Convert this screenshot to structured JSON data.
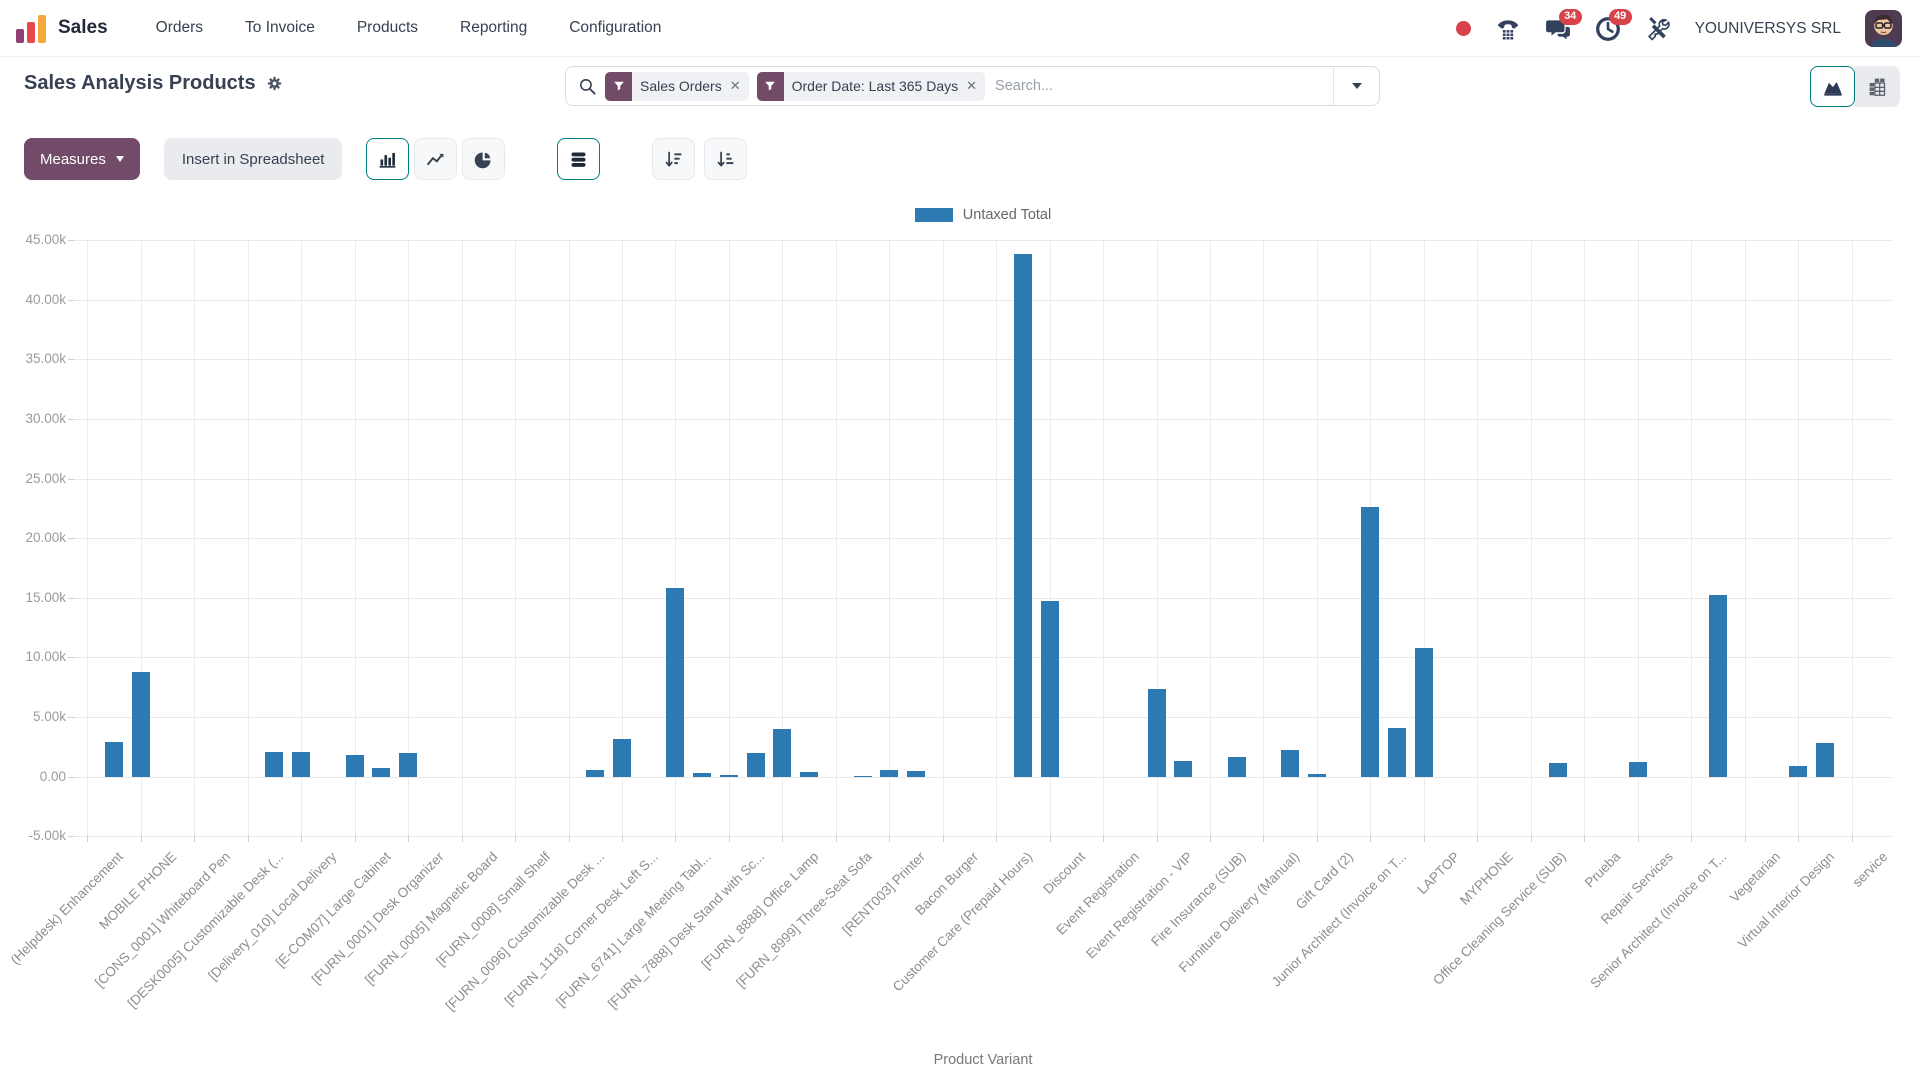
{
  "colors": {
    "primary_purple": "#714B67",
    "accent_teal": "#017e84",
    "bar_blue": "#2d7ab3",
    "badge_red": "#d9414b",
    "icon_navy": "#33415f"
  },
  "navbar": {
    "app_name": "Sales",
    "menu_items": [
      "Orders",
      "To Invoice",
      "Products",
      "Reporting",
      "Configuration"
    ],
    "systray": {
      "messages_badge": "34",
      "activities_badge": "49",
      "company": "YOUNIVERSYS SRL"
    }
  },
  "control_panel": {
    "title": "Sales Analysis Products",
    "search": {
      "facets": [
        "Sales Orders",
        "Order Date: Last 365 Days"
      ],
      "placeholder": "Search..."
    }
  },
  "toolbar": {
    "measures": "Measures",
    "insert_spreadsheet": "Insert in Spreadsheet"
  },
  "chart_data": {
    "type": "bar",
    "title": "",
    "legend": [
      {
        "name": "Untaxed Total",
        "color": "#2d7ab3"
      }
    ],
    "xlabel": "Product Variant",
    "ylim": [
      -5000,
      45000
    ],
    "y_step": 5000,
    "y_ticks": [
      "45.00k",
      "40.00k",
      "35.00k",
      "30.00k",
      "25.00k",
      "20.00k",
      "15.00k",
      "10.00k",
      "5.00k",
      "0.00",
      "-5.00k"
    ],
    "grid": true,
    "legend_position": "top",
    "categories": [
      "(Helpdesk) Enhancement",
      "MOBILE PHONE",
      "[CONS_0001] Whiteboard Pen",
      "[DESK0005] Customizable Desk (...",
      "[Delivery_010] Local Delivery",
      "[E-COM07] Large Cabinet",
      "[FURN_0001] Desk Organizer",
      "[FURN_0005] Magnetic Board",
      "[FURN_0008] Small Shelf",
      "[FURN_0096] Customizable Desk ...",
      "[FURN_1118] Corner Desk Left S...",
      "[FURN_6741] Large Meeting Tabl...",
      "[FURN_7888] Desk Stand with Sc...",
      "[FURN_8888] Office Lamp",
      "[FURN_8999] Three-Seat Sofa",
      "[RENT003] Printer",
      "Bacon Burger",
      "Customer Care (Prepaid Hours)",
      "Discount",
      "Event Registration",
      "Event Registration - VIP",
      "Fire Insurance (SUB)",
      "Furniture Delivery (Manual)",
      "Gift Card (2)",
      "Junior Architect (Invoice on T...",
      "LAPTOP",
      "MYPHONE",
      "Office Cleaning Service (SUB)",
      "Prueba",
      "Repair Services",
      "Senior Architect (Invoice on T...",
      "Vegetarian",
      "Virtual Interior Design",
      "service"
    ],
    "label_slot_stride": 2,
    "total_slots": 68,
    "bars": [
      {
        "slot": 1,
        "value": 2900
      },
      {
        "slot": 2,
        "value": 8800
      },
      {
        "slot": 7,
        "value": 2100
      },
      {
        "slot": 8,
        "value": 2100
      },
      {
        "slot": 10,
        "value": 1850
      },
      {
        "slot": 11,
        "value": 760
      },
      {
        "slot": 12,
        "value": 2000
      },
      {
        "slot": 19,
        "value": 560
      },
      {
        "slot": 20,
        "value": 3200
      },
      {
        "slot": 22,
        "value": 15800
      },
      {
        "slot": 23,
        "value": 310
      },
      {
        "slot": 24,
        "value": 120
      },
      {
        "slot": 25,
        "value": 1960
      },
      {
        "slot": 26,
        "value": 3970
      },
      {
        "slot": 27,
        "value": 370
      },
      {
        "slot": 29,
        "value": 60
      },
      {
        "slot": 30,
        "value": 560
      },
      {
        "slot": 31,
        "value": 480
      },
      {
        "slot": 35,
        "value": 43800
      },
      {
        "slot": 36,
        "value": 14700
      },
      {
        "slot": 40,
        "value": 7330
      },
      {
        "slot": 41,
        "value": 1320
      },
      {
        "slot": 43,
        "value": 1630
      },
      {
        "slot": 45,
        "value": 2240
      },
      {
        "slot": 46,
        "value": 200
      },
      {
        "slot": 48,
        "value": 22600
      },
      {
        "slot": 49,
        "value": 4110
      },
      {
        "slot": 50,
        "value": 10800
      },
      {
        "slot": 55,
        "value": 1170
      },
      {
        "slot": 58,
        "value": 1200
      },
      {
        "slot": 61,
        "value": 15200
      },
      {
        "slot": 64,
        "value": 920
      },
      {
        "slot": 65,
        "value": 2850
      }
    ]
  }
}
